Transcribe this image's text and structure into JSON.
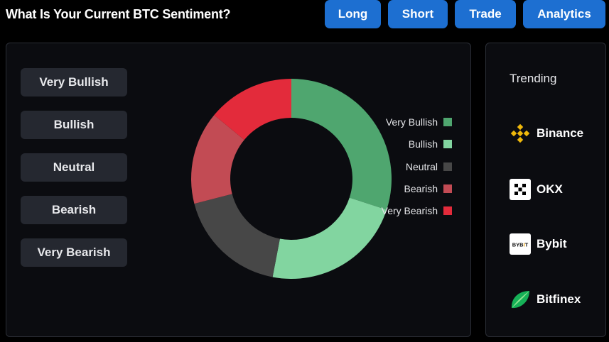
{
  "header": {
    "title": "What Is Your Current BTC Sentiment?",
    "buttons": [
      "Long",
      "Short",
      "Trade",
      "Analytics"
    ]
  },
  "sentiment_options": [
    "Very Bullish",
    "Bullish",
    "Neutral",
    "Bearish",
    "Very Bearish"
  ],
  "chart_data": {
    "type": "pie",
    "categories": [
      "Very Bullish",
      "Bullish",
      "Neutral",
      "Bearish",
      "Very Bearish"
    ],
    "values": [
      30,
      23,
      18,
      15,
      14
    ],
    "colors": [
      "#4fa66f",
      "#82d5a0",
      "#474747",
      "#c24b54",
      "#e32b3b"
    ],
    "legend_position": "right",
    "donut": true
  },
  "trending": {
    "title": "Trending",
    "exchanges": [
      {
        "name": "Binance",
        "icon": "binance-logo"
      },
      {
        "name": "OKX",
        "icon": "okx-logo"
      },
      {
        "name": "Bybit",
        "icon": "bybit-logo",
        "logo_text": "BYBIT"
      },
      {
        "name": "Bitfinex",
        "icon": "bitfinex-logo"
      }
    ]
  },
  "colors": {
    "accent": "#1d6fd1",
    "panel": "#0b0c10",
    "button": "#252830"
  }
}
